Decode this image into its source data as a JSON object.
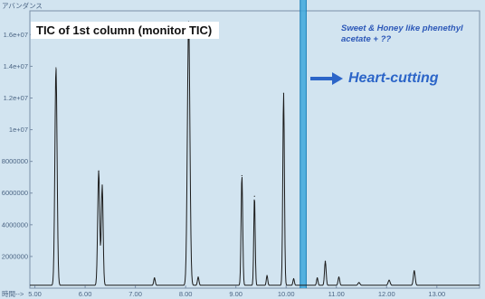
{
  "chart_data": {
    "type": "line",
    "title": "TIC of 1st column (monitor TIC)",
    "ylabel": "アバンダンス",
    "xlabel": "時間-->",
    "xlim": [
      4.9,
      13.85
    ],
    "ylim": [
      0,
      17500000
    ],
    "x_ticks": [
      5.0,
      6.0,
      7.0,
      8.0,
      9.0,
      10.0,
      11.0,
      12.0,
      13.0
    ],
    "x_tick_labels": [
      "5.00",
      "6.00",
      "7.00",
      "8.00",
      "9.00",
      "10.00",
      "11.00",
      "12.00",
      "13.00"
    ],
    "y_ticks": [
      2000000,
      4000000,
      6000000,
      8000000,
      10000000,
      12000000,
      14000000,
      16000000
    ],
    "y_tick_labels": [
      "2000000",
      "4000000",
      "6000000",
      "8000000",
      "1e+07",
      "1.2e+07",
      "1.4e+07",
      "1.6e+07"
    ],
    "baseline": 180000,
    "series": [
      {
        "color": "#1c1c1c",
        "peaks": [
          {
            "x": 5.42,
            "y": 13900000,
            "w": 0.022
          },
          {
            "x": 6.27,
            "y": 7400000,
            "w": 0.02
          },
          {
            "x": 6.34,
            "y": 6500000,
            "w": 0.018
          },
          {
            "x": 7.38,
            "y": 650000,
            "w": 0.015
          },
          {
            "x": 8.06,
            "y": 16800000,
            "w": 0.025
          },
          {
            "x": 8.25,
            "y": 700000,
            "w": 0.015
          },
          {
            "x": 9.12,
            "y": 7100000,
            "w": 0.016
          },
          {
            "x": 9.37,
            "y": 5800000,
            "w": 0.014
          },
          {
            "x": 9.62,
            "y": 800000,
            "w": 0.014
          },
          {
            "x": 9.95,
            "y": 12300000,
            "w": 0.016
          },
          {
            "x": 10.15,
            "y": 600000,
            "w": 0.014
          },
          {
            "x": 10.62,
            "y": 650000,
            "w": 0.014
          },
          {
            "x": 10.78,
            "y": 1700000,
            "w": 0.016
          },
          {
            "x": 11.05,
            "y": 700000,
            "w": 0.016
          },
          {
            "x": 11.45,
            "y": 350000,
            "w": 0.02
          },
          {
            "x": 12.05,
            "y": 500000,
            "w": 0.02
          },
          {
            "x": 12.55,
            "y": 1100000,
            "w": 0.018
          }
        ]
      }
    ],
    "highlight_band": {
      "x_from": 10.28,
      "x_to": 10.4,
      "color": "#3ea8dc"
    }
  },
  "annotations": {
    "aroma_note": "Sweet & Honey like phenethyl acetate + ??",
    "cut_label": "Heart-cutting",
    "arrow_color": "#2c65c8"
  },
  "colors": {
    "panel_background": "#d2e4f0",
    "frame": "#7a8fa8",
    "tick_text": "#4b6584"
  }
}
